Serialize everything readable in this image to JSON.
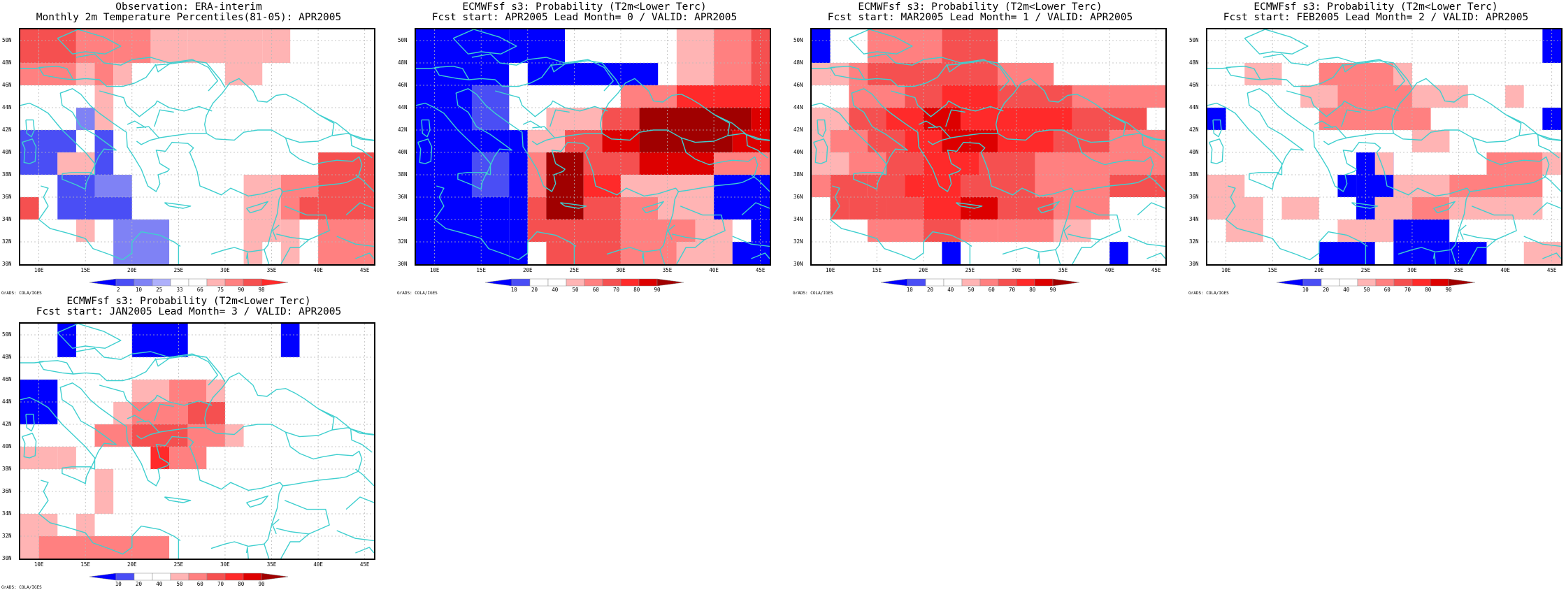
{
  "domain_extent": {
    "lon": [
      8,
      46
    ],
    "lat": [
      30,
      51
    ]
  },
  "y_ticks": [
    "30N",
    "32N",
    "34N",
    "36N",
    "38N",
    "40N",
    "42N",
    "44N",
    "46N",
    "48N",
    "50N"
  ],
  "x_ticks": [
    "10E",
    "15E",
    "20E",
    "25E",
    "30E",
    "35E",
    "40E",
    "45E"
  ],
  "credit": "GrADS: COLA/IGES",
  "colors": {
    "coast": "#3fcfcf",
    "grid": "#b8b8b8",
    "obs": [
      "#0000ff",
      "#4a4ef5",
      "#7f82f5",
      "#aeb0fb",
      "#ffffff",
      "#ffffff",
      "#ffb4b4",
      "#ff8080",
      "#f55050",
      "#ff2a2a"
    ],
    "prob": [
      "#0000ff",
      "#4a4ef5",
      "#ffffff",
      "#ffffff",
      "#ffb4b4",
      "#ff8080",
      "#f55050",
      "#ff2a2a",
      "#dd0000",
      "#a00000"
    ]
  },
  "panels": [
    {
      "title1": "Observation: ERA-interim",
      "title2": "Monthly 2m Temperature Percentiles(81-05): APR2005",
      "colorbar_labels": [
        "2",
        "10",
        "25",
        "33",
        "66",
        "75",
        "90",
        "98"
      ],
      "scheme": "obs",
      "grid": [
        "..........",
        "..........",
        "5.........",
        "5.........",
        ".1..7.....",
        "..1..5....",
        ".....4....",
        ".....6....",
        "..........",
        ".7..6....."
      ]
    },
    {
      "title1": "ECMWFsf s3: Probability (T2m<Lower Terc)",
      "title2": "Fcst start: APR2005   Lead Month= 0 / VALID: APR2005",
      "colorbar_labels": [
        "10",
        "20",
        "40",
        "50",
        "60",
        "70",
        "80",
        "90"
      ],
      "scheme": "prob",
      "grid": []
    },
    {
      "title1": "ECMWFsf s3: Probability (T2m<Lower Terc)",
      "title2": "Fcst start: MAR2005   Lead Month= 1 / VALID: APR2005",
      "colorbar_labels": [
        "10",
        "20",
        "40",
        "50",
        "60",
        "70",
        "80",
        "90"
      ],
      "scheme": "prob",
      "grid": []
    },
    {
      "title1": "ECMWFsf s3: Probability (T2m<Lower Terc)",
      "title2": "Fcst start: FEB2005   Lead Month= 2 / VALID: APR2005",
      "colorbar_labels": [
        "10",
        "20",
        "40",
        "50",
        "60",
        "70",
        "80",
        "90"
      ],
      "scheme": "prob",
      "grid": []
    },
    {
      "title1": "ECMWFsf s3: Probability (T2m<Lower Terc)",
      "title2": "Fcst start: JAN2005   Lead Month= 3 / VALID: APR2005",
      "colorbar_labels": [
        "10",
        "20",
        "40",
        "50",
        "60",
        "70",
        "80",
        "90"
      ],
      "scheme": "prob",
      "grid": []
    }
  ]
}
